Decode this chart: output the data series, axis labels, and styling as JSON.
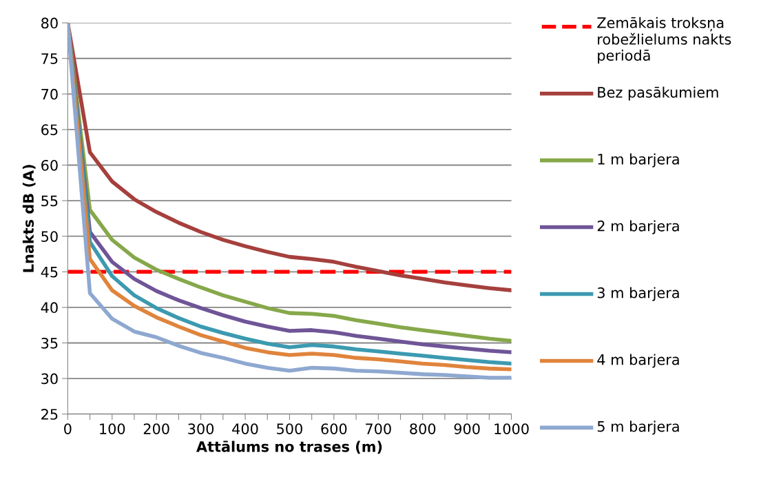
{
  "chart_data": {
    "type": "line",
    "xlabel": "Attālums no trases (m)",
    "ylabel": "Lnakts dB (A)",
    "x": [
      0,
      50,
      100,
      150,
      200,
      250,
      300,
      350,
      400,
      450,
      500,
      550,
      600,
      650,
      700,
      750,
      800,
      850,
      900,
      950,
      1000
    ],
    "series": [
      {
        "name": "Bez pasākumiem",
        "color": "#a5403d",
        "values": [
          80,
          61.8,
          57.7,
          55.2,
          53.4,
          51.9,
          50.6,
          49.5,
          48.6,
          47.8,
          47.1,
          46.8,
          46.4,
          45.7,
          45.1,
          44.5,
          44.0,
          43.5,
          43.1,
          42.7,
          42.4
        ]
      },
      {
        "name": "1 m barjera",
        "color": "#86a84a",
        "values": [
          80,
          53.7,
          49.5,
          47.0,
          45.3,
          44.0,
          42.8,
          41.7,
          40.8,
          39.9,
          39.2,
          39.1,
          38.8,
          38.2,
          37.7,
          37.2,
          36.8,
          36.4,
          36.0,
          35.6,
          35.3
        ]
      },
      {
        "name": "2 m barjera",
        "color": "#6f5597",
        "values": [
          80,
          50.6,
          46.4,
          44.0,
          42.3,
          41.0,
          39.9,
          38.9,
          38.0,
          37.3,
          36.7,
          36.8,
          36.5,
          36.0,
          35.6,
          35.2,
          34.8,
          34.5,
          34.2,
          33.9,
          33.7
        ]
      },
      {
        "name": "3 m barjera",
        "color": "#3c9ab0",
        "values": [
          80,
          49.2,
          44.4,
          41.7,
          39.9,
          38.5,
          37.3,
          36.4,
          35.6,
          34.9,
          34.4,
          34.7,
          34.5,
          34.1,
          33.8,
          33.5,
          33.2,
          32.9,
          32.6,
          32.3,
          32.1
        ]
      },
      {
        "name": "4 m barjera",
        "color": "#e0843c",
        "values": [
          80,
          46.8,
          42.4,
          40.2,
          38.6,
          37.3,
          36.1,
          35.2,
          34.3,
          33.7,
          33.3,
          33.5,
          33.3,
          32.9,
          32.7,
          32.4,
          32.1,
          31.9,
          31.6,
          31.4,
          31.3
        ]
      },
      {
        "name": "5 m barjera",
        "color": "#8ea8d0",
        "values": [
          80,
          42.0,
          38.4,
          36.6,
          35.8,
          34.6,
          33.6,
          32.9,
          32.1,
          31.5,
          31.1,
          31.5,
          31.4,
          31.1,
          31.0,
          30.8,
          30.6,
          30.5,
          30.3,
          30.1,
          30.1
        ]
      }
    ],
    "ref_lines": [
      {
        "axis": "y",
        "value": 45,
        "label": "Zemākais troksņa robežlielums nakts periodā",
        "color": "#ff0000",
        "line_style": "dashed"
      }
    ],
    "xlim": [
      0,
      1000
    ],
    "xticks": [
      0,
      {
        "value": 50,
        "label": null
      },
      100,
      {
        "value": 150,
        "label": null
      },
      200,
      {
        "value": 250,
        "label": null
      },
      300,
      {
        "value": 350,
        "label": null
      },
      400,
      {
        "value": 450,
        "label": null
      },
      500,
      {
        "value": 550,
        "label": null
      },
      600,
      {
        "value": 650,
        "label": null
      },
      700,
      {
        "value": 750,
        "label": null
      },
      800,
      {
        "value": 850,
        "label": null
      },
      900,
      {
        "value": 950,
        "label": null
      },
      1000
    ],
    "ylim": [
      25,
      80
    ],
    "yticks": [
      25,
      30,
      35,
      40,
      45,
      50,
      55,
      60,
      65,
      70,
      75,
      80
    ],
    "grid": "y",
    "legend": "right",
    "marker": "none",
    "line_style": "solid"
  }
}
